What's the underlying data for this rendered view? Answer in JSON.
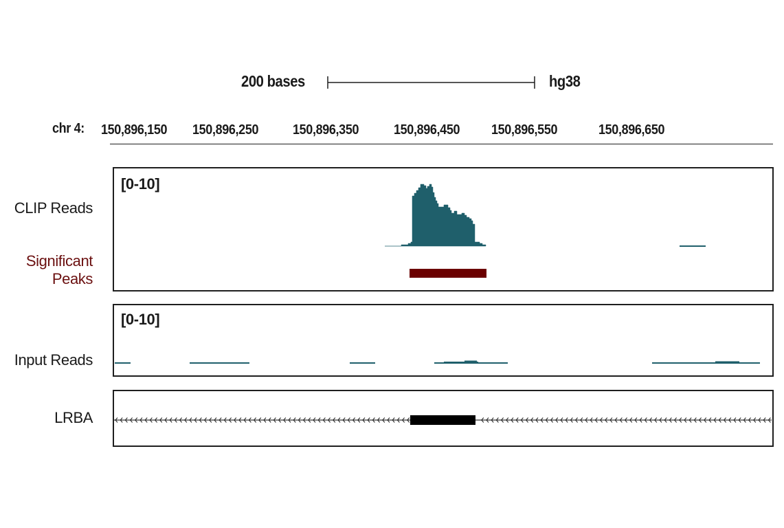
{
  "scale_bar": {
    "length_label": "200 bases",
    "genome": "hg38"
  },
  "ruler": {
    "chrom_label": "chr 4:",
    "ticks": [
      "150,896,150",
      "150,896,250",
      "150,896,350",
      "150,896,450",
      "150,896,550",
      "150,896,650"
    ]
  },
  "tracks": [
    {
      "id": "clip",
      "label": "CLIP Reads",
      "range": "[0-10]",
      "color": "#1f5f6b"
    },
    {
      "id": "peaks",
      "label": "Significant Peaks",
      "label_line1": "Significant",
      "label_line2": "Peaks",
      "color": "#6b0000"
    },
    {
      "id": "input",
      "label": "Input Reads",
      "range": "[0-10]",
      "color": "#1f5f6b"
    },
    {
      "id": "gene",
      "label": "LRBA",
      "color": "#000000",
      "strand": "-"
    }
  ],
  "colors": {
    "signal": "#1f5f6b",
    "peak": "#6b0000",
    "peak_label": "#6b1010",
    "frame": "#1e1e1e"
  }
}
